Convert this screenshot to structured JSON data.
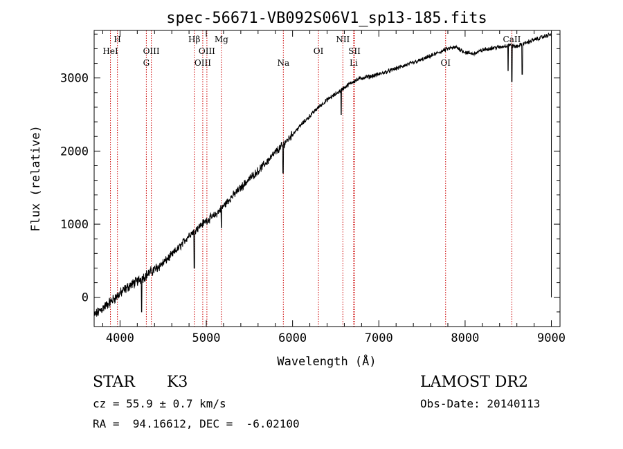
{
  "chart_data": {
    "type": "line",
    "title": "spec-56671-VB092S06V1_sp13-185.fits",
    "xlabel": "Wavelength (Å)",
    "ylabel": "Flux (relative)",
    "xlim": [
      3700,
      9100
    ],
    "ylim": [
      -400,
      3650
    ],
    "xticks": [
      4000,
      5000,
      6000,
      7000,
      8000,
      9000
    ],
    "yticks": [
      0,
      1000,
      2000,
      3000
    ],
    "grid": false,
    "series": [
      {
        "x": [
          3700,
          3800,
          3900,
          4000,
          4100,
          4200,
          4300,
          4400,
          4500,
          4600,
          4700,
          4800,
          4900,
          5000,
          5100,
          5200,
          5300,
          5400,
          5500,
          5600,
          5700,
          5800,
          5900,
          6000,
          6100,
          6200,
          6300,
          6400,
          6500,
          6600,
          6700,
          6800,
          6900,
          7000,
          7100,
          7200,
          7300,
          7400,
          7500,
          7600,
          7700,
          7800,
          7900,
          8000,
          8100,
          8200,
          8300,
          8400,
          8500,
          8600,
          8700,
          8800,
          8900,
          8950,
          9000
        ],
        "y": [
          -250,
          -150,
          -50,
          50,
          150,
          220,
          300,
          380,
          470,
          580,
          700,
          850,
          950,
          1050,
          1120,
          1250,
          1380,
          1500,
          1620,
          1730,
          1850,
          1980,
          2100,
          2230,
          2360,
          2480,
          2600,
          2700,
          2780,
          2870,
          2950,
          3000,
          3020,
          3050,
          3090,
          3130,
          3170,
          3210,
          3250,
          3300,
          3350,
          3400,
          3420,
          3350,
          3330,
          3380,
          3410,
          3420,
          3450,
          3430,
          3480,
          3520,
          3560,
          3580,
          3600
        ]
      }
    ],
    "absorption_dips": [
      {
        "x": 4250,
        "y": -200
      },
      {
        "x": 4861,
        "y": 400
      },
      {
        "x": 5175,
        "y": 950
      },
      {
        "x": 5890,
        "y": 1700
      },
      {
        "x": 6563,
        "y": 2500
      },
      {
        "x": 8498,
        "y": 3100
      },
      {
        "x": 8542,
        "y": 2950
      },
      {
        "x": 8662,
        "y": 3050
      },
      {
        "x": 9000,
        "y": 0
      }
    ],
    "annotations": [
      {
        "label": "H",
        "x": 3970,
        "row": 1
      },
      {
        "label": "HeI",
        "x": 3889,
        "row": 2
      },
      {
        "label": "OIII",
        "x": 4363,
        "row": 2
      },
      {
        "label": "G",
        "x": 4305,
        "row": 3
      },
      {
        "label": "Hβ",
        "x": 4861,
        "row": 1
      },
      {
        "label": "Mg",
        "x": 5175,
        "row": 1
      },
      {
        "label": "OIII",
        "x": 5007,
        "row": 2
      },
      {
        "label": "OIII",
        "x": 4959,
        "row": 3
      },
      {
        "label": "Na",
        "x": 5893,
        "row": 3
      },
      {
        "label": "OI",
        "x": 6300,
        "row": 2
      },
      {
        "label": "NII",
        "x": 6583,
        "row": 1
      },
      {
        "label": "Li",
        "x": 6708,
        "row": 3
      },
      {
        "label": "OI",
        "x": 7774,
        "row": 3
      },
      {
        "label": "SII",
        "x": 6717,
        "row": 2
      },
      {
        "label": "CaII",
        "x": 8542,
        "row": 1
      }
    ]
  },
  "info": {
    "object_type": "STAR",
    "subclass": "K3",
    "survey": "LAMOST DR2",
    "cz": "cz = 55.9 ± 0.7 km/s",
    "obs_date": "Obs-Date: 20140113",
    "coords": "RA =  94.16612, DEC =  -6.02100"
  },
  "colors": {
    "spectrum": "#000000",
    "line_markers": "#cc0000",
    "axes": "#000000"
  }
}
